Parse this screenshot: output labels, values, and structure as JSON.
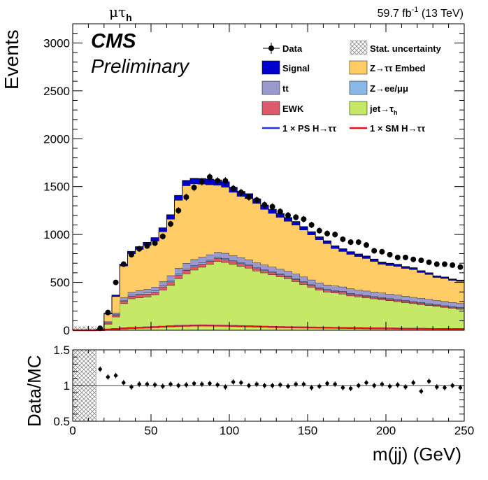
{
  "header": {
    "channel_label": "μτ",
    "channel_sub": "h",
    "lumi_label": "59.7 fb",
    "lumi_sup": "-1",
    "lumi_suffix": " (13 TeV)",
    "experiment": "CMS",
    "status": "Preliminary"
  },
  "colors": {
    "signal": "#0000cc",
    "ztt_embed": "#ffcc66",
    "tt": "#9999cc",
    "zll": "#8ab9e6",
    "ewk": "#de5a6a",
    "jetfakes": "#c5e866",
    "ps_line": "#2233dd",
    "sm_line": "#ee1111"
  },
  "legend": {
    "data": "Data",
    "stat": "Stat. uncertainty",
    "signal": "Signal",
    "ztt": "Z→ττ Embed",
    "tt": "tt",
    "zll": "Z→ee/μμ",
    "ewk": "EWK",
    "jet": "jet→τ",
    "jet_sub": "h",
    "ps": "1 × PS H→ττ",
    "sm": "1 × SM H→ττ"
  },
  "chart_data": {
    "type": "bar",
    "subtype": "stacked-histogram",
    "xlabel": "m(jj) (GeV)",
    "ylabel_main": "Events",
    "ylabel_ratio": "Data/MC",
    "xlim": [
      0,
      250
    ],
    "ylim_main": [
      0,
      3200
    ],
    "ylim_ratio": [
      0.5,
      1.5
    ],
    "x_ticks": [
      "0",
      "50",
      "100",
      "150",
      "200",
      "250"
    ],
    "y_ticks_main": [
      "0",
      "500",
      "1000",
      "1500",
      "2000",
      "2500",
      "3000"
    ],
    "y_ticks_ratio": [
      "0.5",
      "1",
      "1.5"
    ],
    "bin_width": 5,
    "bin_low_edges": [
      0,
      5,
      10,
      15,
      20,
      25,
      30,
      35,
      40,
      45,
      50,
      55,
      60,
      65,
      70,
      75,
      80,
      85,
      90,
      95,
      100,
      105,
      110,
      115,
      120,
      125,
      130,
      135,
      140,
      145,
      150,
      155,
      160,
      165,
      170,
      175,
      180,
      185,
      190,
      195,
      200,
      205,
      210,
      215,
      220,
      225,
      230,
      235,
      240,
      245
    ],
    "stat_band_range": [
      0,
      15
    ],
    "series": [
      {
        "name": "jet→τh",
        "key": "jetfakes",
        "values": [
          0,
          0,
          0,
          5,
          65,
          140,
          280,
          330,
          340,
          350,
          370,
          420,
          470,
          540,
          590,
          630,
          660,
          690,
          720,
          710,
          690,
          670,
          650,
          620,
          600,
          580,
          560,
          540,
          510,
          480,
          450,
          420,
          400,
          390,
          380,
          360,
          350,
          340,
          330,
          320,
          310,
          300,
          290,
          280,
          270,
          260,
          250,
          240,
          230,
          220
        ]
      },
      {
        "name": "EWK",
        "key": "ewk",
        "values": [
          0,
          0,
          0,
          1,
          10,
          18,
          25,
          28,
          30,
          30,
          32,
          34,
          36,
          38,
          38,
          36,
          34,
          32,
          30,
          30,
          28,
          27,
          26,
          25,
          24,
          23,
          22,
          21,
          21,
          20,
          20,
          19,
          19,
          18,
          18,
          18,
          17,
          17,
          16,
          16,
          15,
          15,
          15,
          14,
          14,
          13,
          13,
          12,
          12,
          12
        ]
      },
      {
        "name": "Z→ee/μμ",
        "key": "zll",
        "values": [
          0,
          0,
          0,
          0,
          3,
          5,
          8,
          9,
          10,
          10,
          10,
          10,
          10,
          10,
          10,
          10,
          10,
          10,
          10,
          10,
          9,
          9,
          9,
          9,
          8,
          8,
          8,
          8,
          8,
          8,
          7,
          7,
          7,
          7,
          7,
          7,
          6,
          6,
          6,
          6,
          6,
          6,
          5,
          5,
          5,
          5,
          5,
          5,
          5,
          5
        ]
      },
      {
        "name": "tt",
        "key": "tt",
        "values": [
          0,
          0,
          0,
          1,
          12,
          20,
          28,
          32,
          35,
          38,
          40,
          45,
          55,
          60,
          62,
          64,
          62,
          58,
          55,
          55,
          54,
          53,
          52,
          52,
          51,
          50,
          50,
          50,
          50,
          50,
          50,
          50,
          49,
          49,
          49,
          49,
          48,
          48,
          48,
          48,
          47,
          47,
          47,
          46,
          46,
          46,
          45,
          45,
          45,
          45
        ]
      },
      {
        "name": "Z→ττ Embed",
        "key": "ztt_embed",
        "values": [
          0,
          0,
          0,
          5,
          80,
          170,
          330,
          400,
          430,
          460,
          480,
          520,
          590,
          710,
          810,
          790,
          760,
          730,
          700,
          690,
          660,
          640,
          640,
          620,
          580,
          560,
          540,
          520,
          510,
          490,
          470,
          450,
          430,
          390,
          370,
          360,
          350,
          340,
          320,
          300,
          300,
          300,
          290,
          290,
          270,
          260,
          240,
          240,
          230,
          230
        ]
      },
      {
        "name": "Signal",
        "key": "signal",
        "values": [
          0,
          0,
          0,
          1,
          8,
          14,
          20,
          25,
          28,
          30,
          35,
          40,
          45,
          50,
          54,
          56,
          58,
          58,
          55,
          55,
          52,
          50,
          48,
          46,
          44,
          42,
          40,
          38,
          36,
          34,
          32,
          30,
          29,
          28,
          27,
          26,
          25,
          24,
          23,
          22,
          21,
          20,
          19,
          18,
          17,
          16,
          15,
          14,
          13,
          12
        ]
      }
    ],
    "lines": [
      {
        "name": "1 × PS H→ττ",
        "key": "ps_line",
        "values": [
          0,
          0,
          0,
          1,
          8,
          14,
          20,
          24,
          27,
          30,
          34,
          38,
          42,
          46,
          48,
          50,
          51,
          50,
          49,
          48,
          46,
          44,
          42,
          40,
          38,
          36,
          34,
          32,
          31,
          30,
          29,
          28,
          27,
          26,
          25,
          24,
          23,
          22,
          21,
          20,
          19,
          18,
          17,
          16,
          16,
          15,
          14,
          14,
          13,
          13
        ]
      },
      {
        "name": "1 × SM H→ττ",
        "key": "sm_line",
        "values": [
          0,
          0,
          0,
          1,
          7,
          12,
          18,
          22,
          25,
          28,
          32,
          36,
          40,
          44,
          46,
          48,
          49,
          48,
          47,
          46,
          44,
          42,
          40,
          38,
          36,
          34,
          32,
          31,
          30,
          29,
          28,
          27,
          26,
          25,
          24,
          23,
          22,
          21,
          20,
          19,
          18,
          17,
          16,
          16,
          15,
          14,
          14,
          13,
          13,
          12
        ]
      }
    ],
    "data_points": {
      "name": "Data",
      "x": [
        17.5,
        22.5,
        27.5,
        32.5,
        37.5,
        42.5,
        47.5,
        52.5,
        57.5,
        62.5,
        67.5,
        72.5,
        77.5,
        82.5,
        87.5,
        92.5,
        97.5,
        102.5,
        107.5,
        112.5,
        117.5,
        122.5,
        127.5,
        132.5,
        137.5,
        142.5,
        147.5,
        152.5,
        157.5,
        162.5,
        167.5,
        172.5,
        177.5,
        182.5,
        187.5,
        192.5,
        197.5,
        202.5,
        207.5,
        212.5,
        217.5,
        222.5,
        227.5,
        232.5,
        237.5,
        242.5,
        247.5
      ],
      "y": [
        20,
        185,
        500,
        690,
        790,
        850,
        880,
        910,
        980,
        1110,
        1250,
        1390,
        1490,
        1550,
        1600,
        1560,
        1560,
        1480,
        1440,
        1390,
        1360,
        1310,
        1290,
        1240,
        1200,
        1180,
        1160,
        1100,
        1040,
        1010,
        1000,
        950,
        920,
        920,
        890,
        830,
        820,
        790,
        760,
        760,
        740,
        730,
        710,
        690,
        690,
        680,
        660
      ],
      "ratio": [
        1.23,
        1.12,
        1.14,
        1.04,
        0.98,
        1.02,
        1.02,
        1.01,
        0.99,
        1.02,
        1.0,
        1.01,
        1.03,
        1.02,
        1.03,
        1.01,
        0.98,
        1.05,
        1.04,
        1.0,
        1.02,
        1.0,
        1.0,
        1.01,
        0.99,
        1.02,
        1.02,
        0.97,
        0.99,
        1.03,
        1.02,
        0.97,
        0.96,
        1.0,
        1.04,
        1.0,
        1.02,
        0.99,
        1.01,
        0.98,
        1.04,
        0.92,
        1.06,
        0.98,
        0.97,
        1.0,
        0.97
      ]
    }
  }
}
